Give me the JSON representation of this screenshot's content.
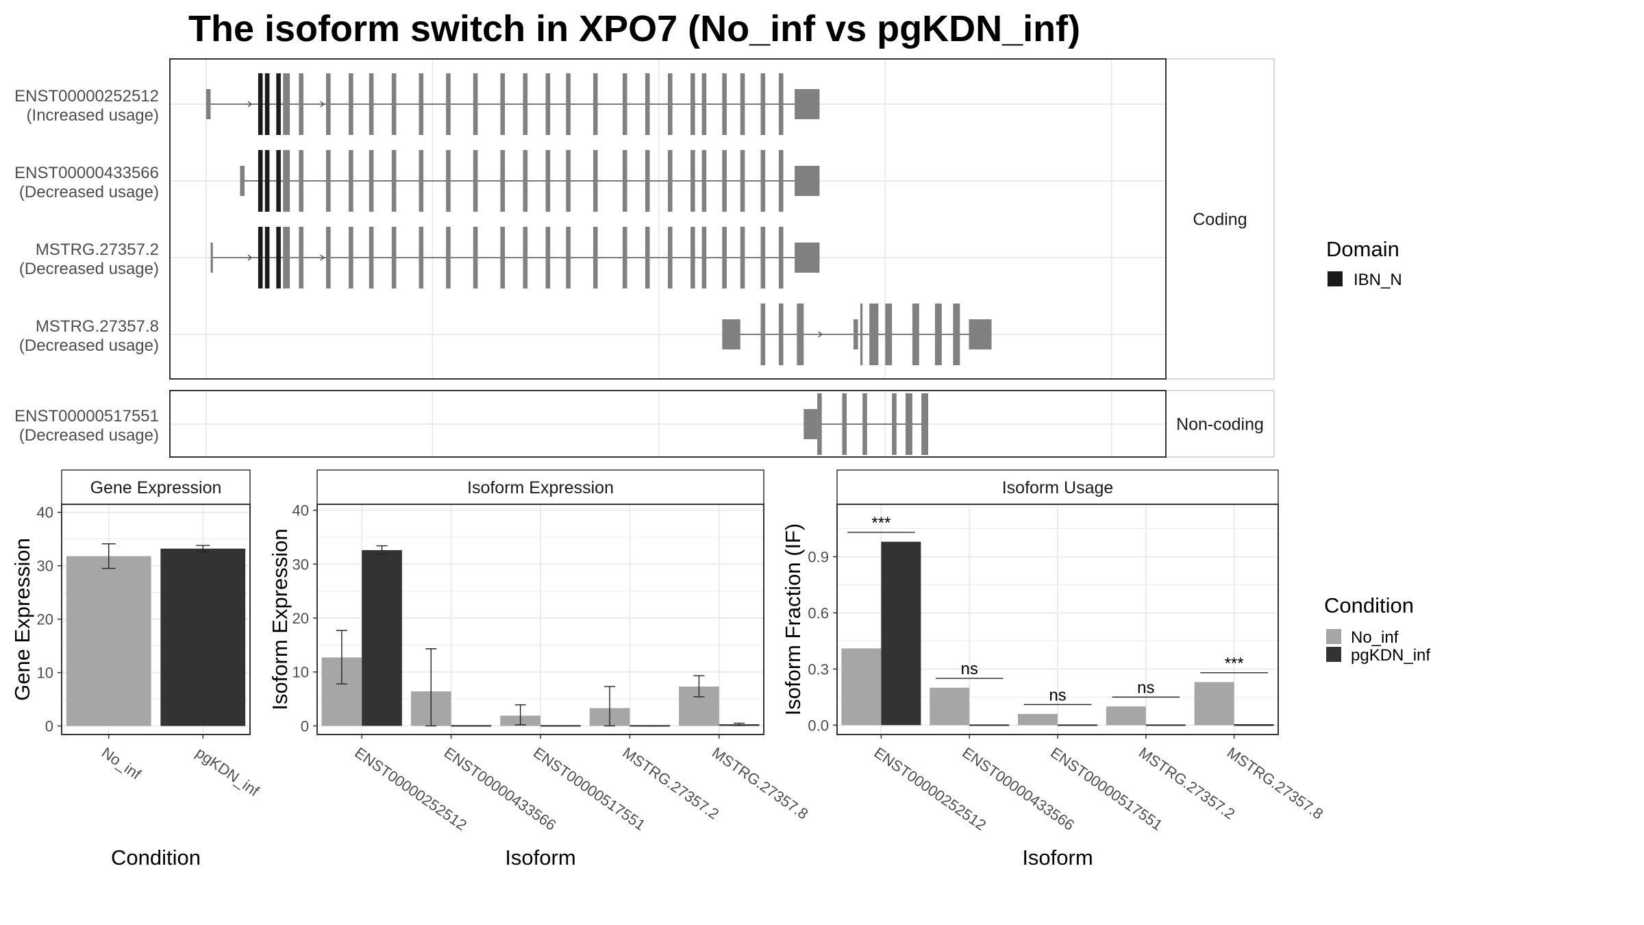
{
  "chart_data": [
    {
      "type": "gene-structure",
      "title": "The isoform switch in XPO7 (No_inf vs pgKDN_inf)",
      "groups": [
        {
          "name": "Coding",
          "transcripts": [
            {
              "id": "ENST00000252512",
              "usage": "(Increased usage)",
              "exons": [
                [
                  0,
                  1,
                  "utr"
                ],
                [
                  11.5,
                  12.5,
                  "dom"
                ],
                [
                  13,
                  14,
                  "dom"
                ],
                [
                  15.5,
                  16.5,
                  "dom"
                ],
                [
                  17,
                  18.5,
                  "cds"
                ],
                [
                  20.5,
                  21.5,
                  "cds"
                ],
                [
                  26.5,
                  27.5,
                  "cds"
                ],
                [
                  31.5,
                  32.5,
                  "cds"
                ],
                [
                  36,
                  37,
                  "cds"
                ],
                [
                  41,
                  42,
                  "cds"
                ],
                [
                  47,
                  48,
                  "cds"
                ],
                [
                  53,
                  54,
                  "cds"
                ],
                [
                  59,
                  60,
                  "cds"
                ],
                [
                  65,
                  66,
                  "cds"
                ],
                [
                  70,
                  71,
                  "cds"
                ],
                [
                  75,
                  76,
                  "cds"
                ],
                [
                  79.5,
                  80.5,
                  "cds"
                ],
                [
                  85.5,
                  86.5,
                  "cds"
                ],
                [
                  92,
                  93,
                  "cds"
                ],
                [
                  97,
                  98,
                  "cds"
                ],
                [
                  102,
                  103,
                  "cds"
                ],
                [
                  107,
                  108,
                  "cds"
                ],
                [
                  109.5,
                  110.5,
                  "cds"
                ],
                [
                  114,
                  115,
                  "cds"
                ],
                [
                  118,
                  119,
                  "cds"
                ],
                [
                  122.5,
                  123.5,
                  "cds"
                ],
                [
                  126.5,
                  127.5,
                  "cds"
                ],
                [
                  130,
                  135.5,
                  "utr"
                ]
              ],
              "arrows": [
                10,
                18,
                26
              ]
            },
            {
              "id": "ENST00000433566",
              "usage": "(Decreased usage)",
              "exons": [
                [
                  7.5,
                  8.5,
                  "utr"
                ],
                [
                  11.5,
                  12.5,
                  "dom"
                ],
                [
                  13,
                  14,
                  "dom"
                ],
                [
                  15.5,
                  16.5,
                  "dom"
                ],
                [
                  17,
                  18.5,
                  "cds"
                ],
                [
                  20.5,
                  21.5,
                  "cds"
                ],
                [
                  26.5,
                  27.5,
                  "cds"
                ],
                [
                  31.5,
                  32.5,
                  "cds"
                ],
                [
                  36,
                  37,
                  "cds"
                ],
                [
                  41,
                  42,
                  "cds"
                ],
                [
                  47,
                  48,
                  "cds"
                ],
                [
                  53,
                  54,
                  "cds"
                ],
                [
                  59,
                  60,
                  "cds"
                ],
                [
                  65,
                  66,
                  "cds"
                ],
                [
                  70,
                  71,
                  "cds"
                ],
                [
                  75,
                  76,
                  "cds"
                ],
                [
                  79.5,
                  80.5,
                  "cds"
                ],
                [
                  85.5,
                  86.5,
                  "cds"
                ],
                [
                  92,
                  93,
                  "cds"
                ],
                [
                  97,
                  98,
                  "cds"
                ],
                [
                  102,
                  103,
                  "cds"
                ],
                [
                  107,
                  108,
                  "cds"
                ],
                [
                  109.5,
                  110.5,
                  "cds"
                ],
                [
                  114,
                  115,
                  "cds"
                ],
                [
                  118,
                  119,
                  "cds"
                ],
                [
                  122.5,
                  123.5,
                  "cds"
                ],
                [
                  126.5,
                  127.5,
                  "cds"
                ],
                [
                  130,
                  135.5,
                  "utr"
                ]
              ],
              "arrows": []
            },
            {
              "id": "MSTRG.27357.2",
              "usage": "(Decreased usage)",
              "exons": [
                [
                  1,
                  1.5,
                  "utr"
                ],
                [
                  11.5,
                  12.5,
                  "dom"
                ],
                [
                  13,
                  14,
                  "dom"
                ],
                [
                  15.5,
                  16.5,
                  "dom"
                ],
                [
                  17,
                  18.5,
                  "cds"
                ],
                [
                  20.5,
                  21.5,
                  "cds"
                ],
                [
                  26.5,
                  27.5,
                  "cds"
                ],
                [
                  31.5,
                  32.5,
                  "cds"
                ],
                [
                  36,
                  37,
                  "cds"
                ],
                [
                  41,
                  42,
                  "cds"
                ],
                [
                  47,
                  48,
                  "cds"
                ],
                [
                  53,
                  54,
                  "cds"
                ],
                [
                  59,
                  60,
                  "cds"
                ],
                [
                  65,
                  66,
                  "cds"
                ],
                [
                  70,
                  71,
                  "cds"
                ],
                [
                  75,
                  76,
                  "cds"
                ],
                [
                  79.5,
                  80.5,
                  "cds"
                ],
                [
                  85.5,
                  86.5,
                  "cds"
                ],
                [
                  92,
                  93,
                  "cds"
                ],
                [
                  97,
                  98,
                  "cds"
                ],
                [
                  102,
                  103,
                  "cds"
                ],
                [
                  107,
                  108,
                  "cds"
                ],
                [
                  109.5,
                  110.5,
                  "cds"
                ],
                [
                  114,
                  115,
                  "cds"
                ],
                [
                  118,
                  119,
                  "cds"
                ],
                [
                  122.5,
                  123.5,
                  "cds"
                ],
                [
                  126.5,
                  127.5,
                  "cds"
                ],
                [
                  130,
                  135.5,
                  "utr"
                ]
              ],
              "arrows": [
                10,
                18,
                26
              ]
            },
            {
              "id": "MSTRG.27357.8",
              "usage": "(Decreased usage)",
              "exons": [
                [
                  114,
                  118,
                  "utr"
                ],
                [
                  122.5,
                  123.5,
                  "cds"
                ],
                [
                  126.5,
                  127.5,
                  "cds"
                ],
                [
                  130.5,
                  132,
                  "cds"
                ],
                [
                  143,
                  144,
                  "utr"
                ],
                [
                  144.5,
                  145,
                  "cds"
                ],
                [
                  146.5,
                  148.5,
                  "cds"
                ],
                [
                  150,
                  151.5,
                  "cds"
                ],
                [
                  156,
                  157.5,
                  "cds"
                ],
                [
                  161,
                  162.5,
                  "cds"
                ],
                [
                  165,
                  166.5,
                  "cds"
                ],
                [
                  168.5,
                  173.5,
                  "utr"
                ]
              ],
              "arrows": [
                136
              ]
            }
          ]
        },
        {
          "name": "Non-coding",
          "transcripts": [
            {
              "id": "ENST00000517551",
              "usage": "(Decreased usage)",
              "exons": [
                [
                  132,
                  135,
                  "utr"
                ],
                [
                  135,
                  136,
                  "nc"
                ],
                [
                  140.5,
                  141.5,
                  "nc"
                ],
                [
                  145,
                  146,
                  "nc"
                ],
                [
                  151.5,
                  152.5,
                  "nc"
                ],
                [
                  154.5,
                  156,
                  "nc"
                ],
                [
                  158,
                  159.5,
                  "nc"
                ]
              ],
              "arrows": []
            }
          ]
        }
      ],
      "legend": {
        "title": "Domain",
        "entries": [
          {
            "label": "IBN_N",
            "color": "#1a1a1a"
          }
        ]
      }
    },
    {
      "type": "bar",
      "title": "Gene Expression",
      "xlabel": "Condition",
      "ylabel": "Gene Expression",
      "categories": [
        "No_inf",
        "pgKDN_inf"
      ],
      "values": [
        31.8,
        33.2
      ],
      "error_low": [
        29.5,
        32.6
      ],
      "error_high": [
        34.1,
        33.8
      ],
      "colors": [
        "#a6a6a6",
        "#333333"
      ],
      "ylim": [
        -1.6,
        41.5
      ],
      "yticks": [
        0,
        10,
        20,
        30,
        40
      ]
    },
    {
      "type": "bar",
      "title": "Isoform Expression",
      "xlabel": "Isoform",
      "ylabel": "Isoform Expression",
      "categories": [
        "ENST00000252512",
        "ENST00000433566",
        "ENST00000517551",
        "MSTRG.27357.2",
        "MSTRG.27357.8"
      ],
      "series": [
        {
          "name": "No_inf",
          "values": [
            12.7,
            6.4,
            1.9,
            3.3,
            7.3
          ],
          "error_low": [
            7.8,
            0.0,
            0.2,
            0.0,
            5.4
          ],
          "error_high": [
            17.7,
            14.3,
            3.9,
            7.3,
            9.3
          ]
        },
        {
          "name": "pgKDN_inf",
          "values": [
            32.6,
            0.0,
            0.0,
            0.0,
            0.3
          ],
          "error_low": [
            31.8,
            0.0,
            0.0,
            0.0,
            0.1
          ],
          "error_high": [
            33.4,
            0.0,
            0.0,
            0.0,
            0.5
          ]
        }
      ],
      "ylim": [
        -1.6,
        41.1
      ],
      "yticks": [
        0,
        10,
        20,
        30,
        40
      ]
    },
    {
      "type": "bar",
      "title": "Isoform Usage",
      "xlabel": "Isoform",
      "ylabel": "Isoform Fraction (IF)",
      "categories": [
        "ENST00000252512",
        "ENST00000433566",
        "ENST00000517551",
        "MSTRG.27357.2",
        "MSTRG.27357.8"
      ],
      "series": [
        {
          "name": "No_inf",
          "values": [
            0.41,
            0.2,
            0.06,
            0.1,
            0.23
          ]
        },
        {
          "name": "pgKDN_inf",
          "values": [
            0.98,
            0.0,
            0.0,
            0.0,
            0.005
          ]
        }
      ],
      "significance": [
        "***",
        "ns",
        "ns",
        "ns",
        "***"
      ],
      "ylim": [
        -0.05,
        1.18
      ],
      "yticks": [
        "0.0",
        "0.3",
        "0.6",
        "0.9"
      ]
    }
  ],
  "legend_condition": {
    "title": "Condition",
    "entries": [
      {
        "label": "No_inf",
        "color": "#a6a6a6"
      },
      {
        "label": "pgKDN_inf",
        "color": "#333333"
      }
    ]
  },
  "colors": {
    "domain": "#1a1a1a",
    "exon": "#808080",
    "no_inf": "#a6a6a6",
    "pgkdn_inf": "#333333",
    "grid": "#ebebeb",
    "strip": "#ffffff"
  }
}
